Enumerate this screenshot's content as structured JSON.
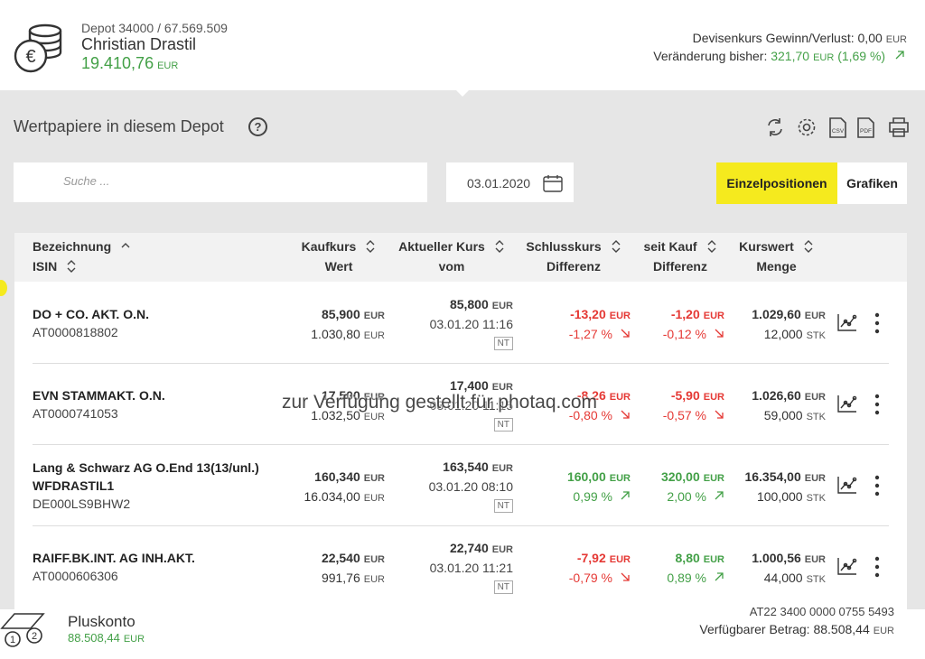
{
  "header": {
    "depot": "Depot 34000 / 67.569.509",
    "name": "Christian Drastil",
    "balance": "19.410,76",
    "fx_label": "Devisenkurs Gewinn/Verlust:",
    "fx_value": "0,00",
    "change_label": "Veränderung bisher:",
    "change_value": "321,70",
    "change_pct": "(1,69 %)"
  },
  "currency": "EUR",
  "qty_unit": "STK",
  "section": {
    "title": "Wertpapiere in diesem Depot",
    "help": "?",
    "icons": [
      "CSV",
      "PDF"
    ]
  },
  "toolbar": {
    "search_placeholder": "Suche ...",
    "date": "03.01.2020",
    "tabs": [
      "Einzelpositionen",
      "Grafiken"
    ]
  },
  "table": {
    "headers": [
      [
        "Bezeichnung",
        "ISIN"
      ],
      [
        "Kaufkurs",
        "Wert"
      ],
      [
        "Aktueller Kurs",
        "vom"
      ],
      [
        "Schlusskurs",
        "Differenz"
      ],
      [
        "seit Kauf",
        "Differenz"
      ],
      [
        "Kurswert",
        "Menge"
      ]
    ],
    "rows": [
      {
        "name": [
          "DO + CO. AKT. O.N."
        ],
        "isin": "AT0000818802",
        "kaufkurs": "85,900",
        "wert": "1.030,80",
        "kurs": "85,800",
        "vom": "03.01.20 11:16",
        "badge": "NT",
        "schluss": "-13,20",
        "schluss_pct": "-1,27 %",
        "seit_kauf": "-1,20",
        "seit_kauf_pct": "-0,12 %",
        "kurswert": "1.029,60",
        "menge": "12,000"
      },
      {
        "name": [
          "EVN STAMMAKT. O.N."
        ],
        "isin": "AT0000741053",
        "kaufkurs": "17,500",
        "wert": "1.032,50",
        "kurs": "17,400",
        "vom": "03.01.20 11:15",
        "badge": "NT",
        "schluss": "-8,26",
        "schluss_pct": "-0,80 %",
        "seit_kauf": "-5,90",
        "seit_kauf_pct": "-0,57 %",
        "kurswert": "1.026,60",
        "menge": "59,000"
      },
      {
        "name": [
          "Lang & Schwarz AG O.End 13(13/unl.)",
          "WFDRASTIL1"
        ],
        "isin": "DE000LS9BHW2",
        "kaufkurs": "160,340",
        "wert": "16.034,00",
        "kurs": "163,540",
        "vom": "03.01.20 08:10",
        "badge": "NT",
        "schluss": "160,00",
        "schluss_pct": "0,99 %",
        "seit_kauf": "320,00",
        "seit_kauf_pct": "2,00 %",
        "kurswert": "16.354,00",
        "menge": "100,000"
      },
      {
        "name": [
          "RAIFF.BK.INT. AG INH.AKT."
        ],
        "isin": "AT0000606306",
        "kaufkurs": "22,540",
        "wert": "991,76",
        "kurs": "22,740",
        "vom": "03.01.20 11:21",
        "badge": "NT",
        "schluss": "-7,92",
        "schluss_pct": "-0,79 %",
        "seit_kauf": "8,80",
        "seit_kauf_pct": "0,89 %",
        "kurswert": "1.000,56",
        "menge": "44,000"
      }
    ]
  },
  "footer": {
    "account": "Pluskonto",
    "amount": "88.508,44",
    "iban": "AT22 3400 0000 0755 5493",
    "available_label": "Verfügbarer Betrag:",
    "available_value": "88.508,44"
  },
  "watermark": "zur Verfügung gestellt für photaq.com"
}
